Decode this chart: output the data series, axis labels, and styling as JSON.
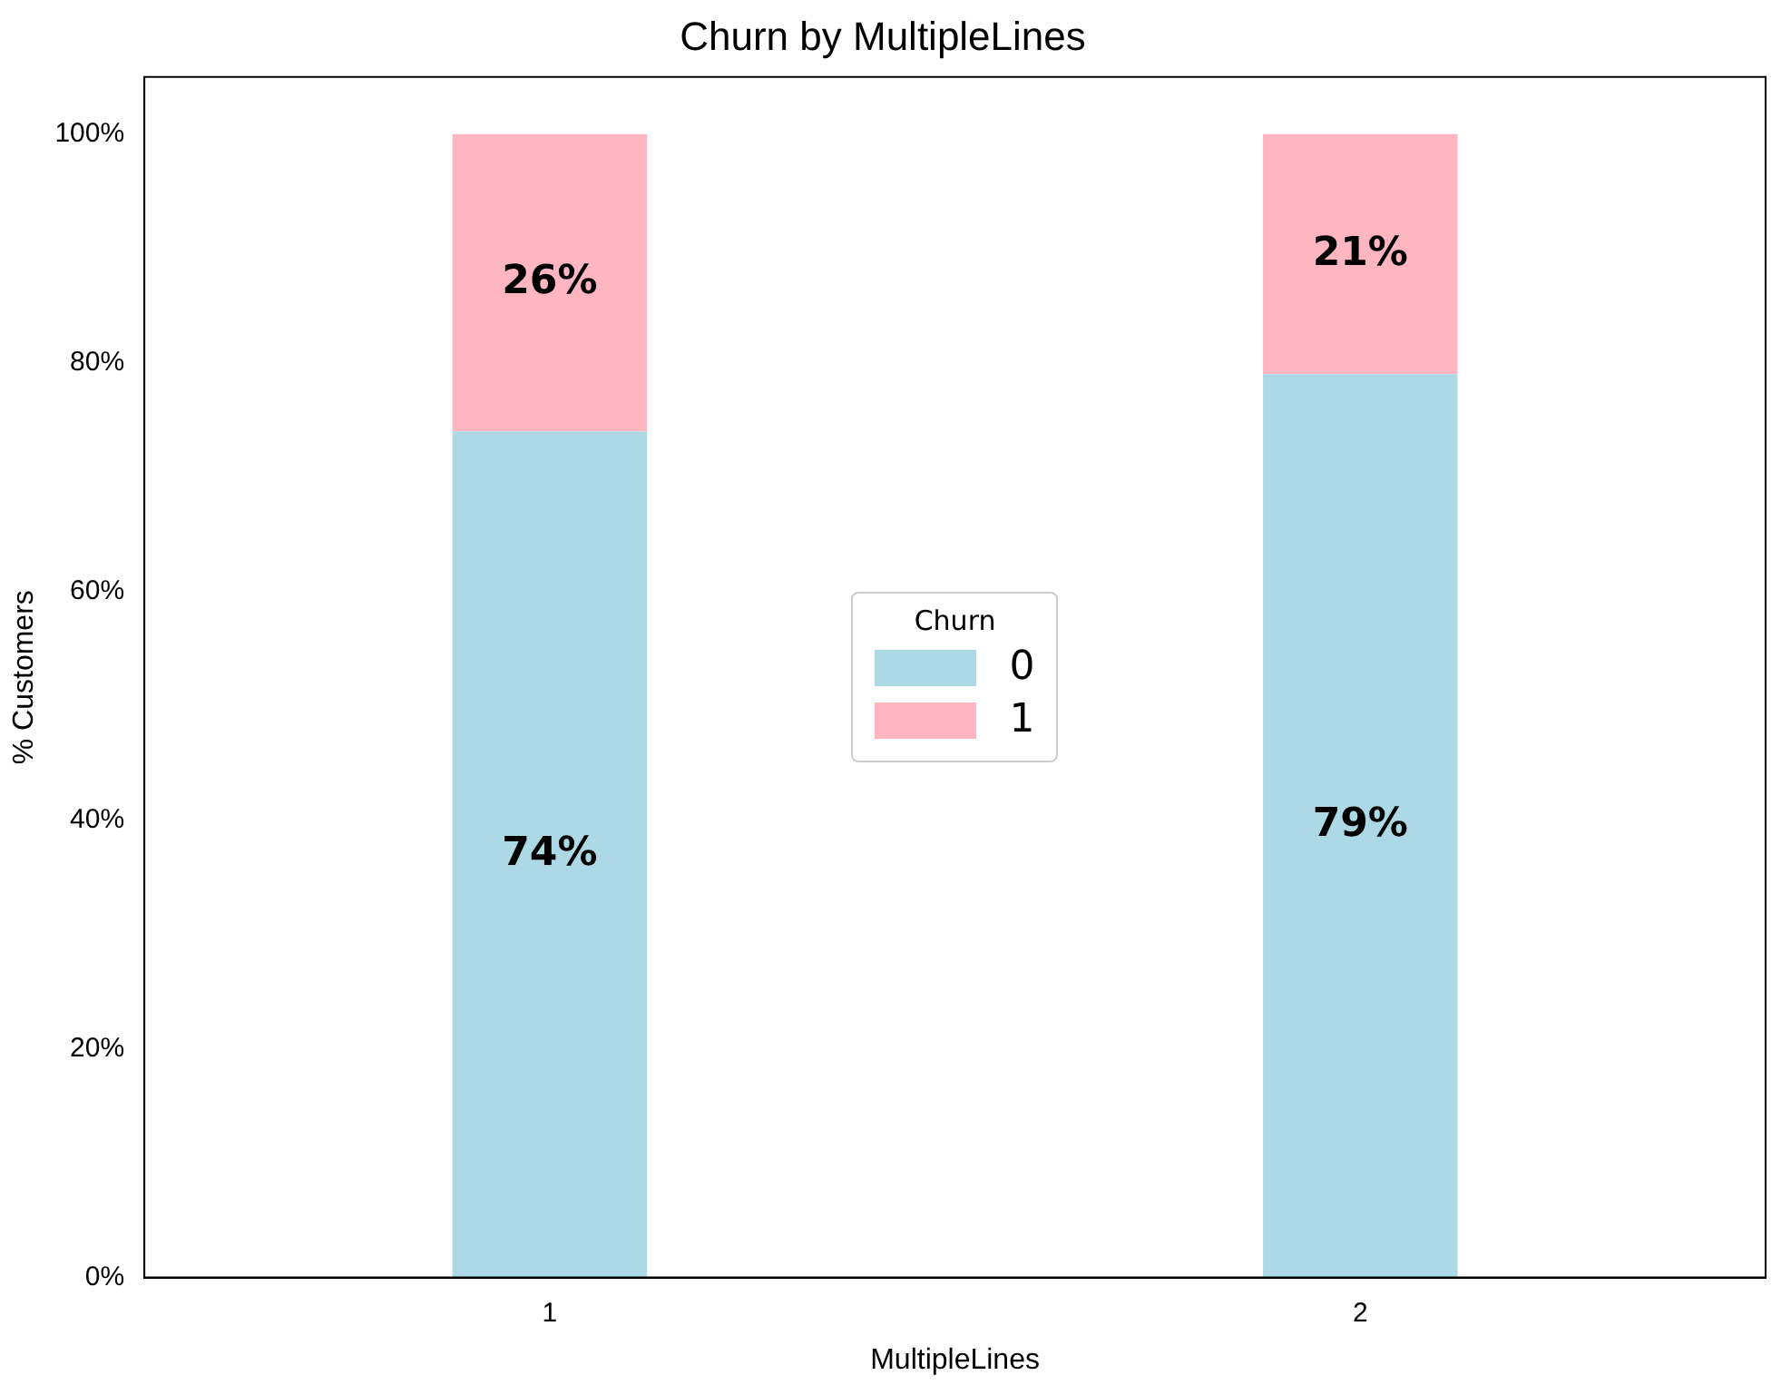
{
  "chart_data": {
    "type": "bar",
    "title": "Churn by MultipleLines",
    "xlabel": "MultipleLines",
    "ylabel": "% Customers",
    "legend_title": "Churn",
    "categories": [
      "1",
      "2"
    ],
    "stacked": true,
    "series": [
      {
        "name": "0",
        "color": "#add8e6",
        "values": [
          74,
          79
        ],
        "value_labels": [
          "74%",
          "79%"
        ]
      },
      {
        "name": "1",
        "color": "#ffb6c1",
        "values": [
          26,
          21
        ],
        "value_labels": [
          "26%",
          "21%"
        ]
      }
    ],
    "ylim": [
      0,
      105
    ],
    "yticks": [
      {
        "value": 0,
        "label": "0%"
      },
      {
        "value": 20,
        "label": "20%"
      },
      {
        "value": 40,
        "label": "40%"
      },
      {
        "value": 60,
        "label": "60%"
      },
      {
        "value": 80,
        "label": "80%"
      },
      {
        "value": 100,
        "label": "100%"
      }
    ],
    "grid": false,
    "legend": "center"
  }
}
